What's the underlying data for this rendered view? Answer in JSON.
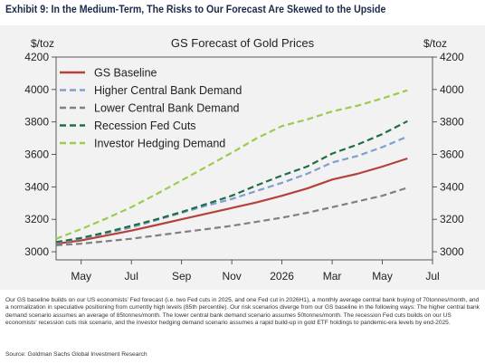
{
  "header": {
    "exhibit_title": "Exhibit 9: In the Medium-Term, The Risks to Our Forecast Are Skewed to the Upside"
  },
  "footnote": "Our GS baseline builds on our US economists' Fed forecast (i.e. two Fed cuts in 2025, and one Fed cut in 2026H1), a monthly average central bank buying of 70tonnes/month, and a normalization in speculative positioning from currently high levels (85th percentile). Our risk scenarios diverge from our GS baseline in the following ways: The higher central bank demand scenario assumes an average of 85tonnes/month. The lower central bank demand scenario assumes 50tonnes/month. The recession Fed cuts builds on our US economists' recession cuts risk scenario, and the investor hedging demand scenario assumes a rapid build-up in gold ETF holdings to pandemic-era levels by end-2025.",
  "source": "Source: Goldman Sachs Global Investment Research",
  "chart_data": {
    "type": "line",
    "title": "GS Forecast of Gold Prices",
    "ylabel_left": "$/toz",
    "ylabel_right": "$/toz",
    "ylim": [
      2950,
      4200
    ],
    "yticks": [
      3000,
      3200,
      3400,
      3600,
      3800,
      4000,
      4200
    ],
    "xlim": [
      0,
      15
    ],
    "xticks": [
      {
        "x": 1,
        "label": "May"
      },
      {
        "x": 3,
        "label": "Jul"
      },
      {
        "x": 5,
        "label": "Sep"
      },
      {
        "x": 7,
        "label": "Nov"
      },
      {
        "x": 9,
        "label": "2026"
      },
      {
        "x": 11,
        "label": "Mar"
      },
      {
        "x": 13,
        "label": "May"
      },
      {
        "x": 15,
        "label": "Jul"
      }
    ],
    "x": [
      0,
      1,
      2,
      3,
      4,
      5,
      6,
      7,
      8,
      9,
      10,
      11,
      12,
      13,
      14
    ],
    "series": [
      {
        "name": "GS Baseline",
        "color": "#b5413b",
        "dash": "solid",
        "values": [
          3050,
          3070,
          3100,
          3130,
          3165,
          3200,
          3235,
          3270,
          3305,
          3345,
          3390,
          3445,
          3480,
          3525,
          3575
        ]
      },
      {
        "name": "Higher Central Bank Demand",
        "color": "#7f9fd0",
        "dash": "dashed",
        "values": [
          3055,
          3080,
          3115,
          3150,
          3195,
          3240,
          3285,
          3325,
          3375,
          3425,
          3480,
          3550,
          3590,
          3645,
          3710
        ]
      },
      {
        "name": "Lower Central Bank Demand",
        "color": "#808080",
        "dash": "dashed",
        "values": [
          3040,
          3050,
          3065,
          3080,
          3100,
          3120,
          3140,
          3160,
          3185,
          3210,
          3240,
          3275,
          3310,
          3345,
          3395
        ]
      },
      {
        "name": "Recession Fed Cuts",
        "color": "#1f6e43",
        "dash": "dashed",
        "values": [
          3060,
          3085,
          3120,
          3160,
          3200,
          3245,
          3295,
          3345,
          3410,
          3470,
          3525,
          3605,
          3660,
          3725,
          3805
        ]
      },
      {
        "name": "Investor Hedging Demand",
        "color": "#9bcc4e",
        "dash": "dashed",
        "values": [
          3080,
          3140,
          3205,
          3275,
          3355,
          3440,
          3525,
          3610,
          3700,
          3775,
          3815,
          3865,
          3900,
          3945,
          3995
        ]
      }
    ],
    "legend_position": "top-left",
    "grid": false
  }
}
